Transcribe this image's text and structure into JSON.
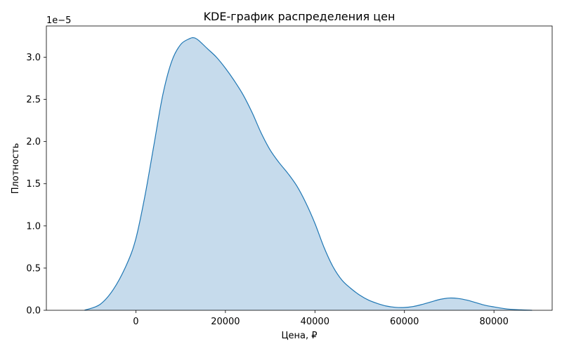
{
  "chart_data": {
    "type": "area",
    "title": "KDE-график распределения цен",
    "xlabel": "Цена, ₽",
    "ylabel": "Плотность",
    "y_offset_label": "1e−5",
    "xlim": [
      -20000,
      93000
    ],
    "ylim": [
      0,
      3.37
    ],
    "y_scale_exponent": -5,
    "grid": false,
    "legend": "none",
    "x_ticks": [
      0,
      20000,
      40000,
      60000,
      80000
    ],
    "x_tick_labels": [
      "0",
      "20000",
      "40000",
      "60000",
      "80000"
    ],
    "y_ticks": [
      0.0,
      0.5,
      1.0,
      1.5,
      2.0,
      2.5,
      3.0
    ],
    "y_tick_labels": [
      "0.0",
      "0.5",
      "1.0",
      "1.5",
      "2.0",
      "2.5",
      "3.0"
    ],
    "series": [
      {
        "line_color": "#1f77b4",
        "fill_color": "#c6dbec",
        "x": [
          -11500,
          -8000,
          -5000,
          -2000,
          0,
          2000,
          4000,
          6000,
          8000,
          10000,
          12000,
          13000,
          14000,
          16000,
          18000,
          20000,
          22000,
          24000,
          26000,
          28000,
          30000,
          32000,
          34000,
          36000,
          38000,
          40000,
          42000,
          44000,
          46000,
          48000,
          50000,
          52000,
          54000,
          56000,
          58000,
          60000,
          62000,
          64000,
          66000,
          68000,
          70000,
          72000,
          74000,
          76000,
          78000,
          80000,
          83000,
          86000,
          88500
        ],
        "y": [
          0.0,
          0.07,
          0.25,
          0.55,
          0.85,
          1.35,
          1.95,
          2.55,
          2.95,
          3.15,
          3.22,
          3.23,
          3.2,
          3.1,
          3.0,
          2.87,
          2.72,
          2.55,
          2.34,
          2.1,
          1.9,
          1.75,
          1.62,
          1.47,
          1.27,
          1.03,
          0.75,
          0.52,
          0.36,
          0.26,
          0.18,
          0.12,
          0.08,
          0.05,
          0.035,
          0.033,
          0.045,
          0.07,
          0.1,
          0.13,
          0.145,
          0.14,
          0.12,
          0.09,
          0.06,
          0.04,
          0.015,
          0.005,
          0.0
        ]
      }
    ]
  }
}
